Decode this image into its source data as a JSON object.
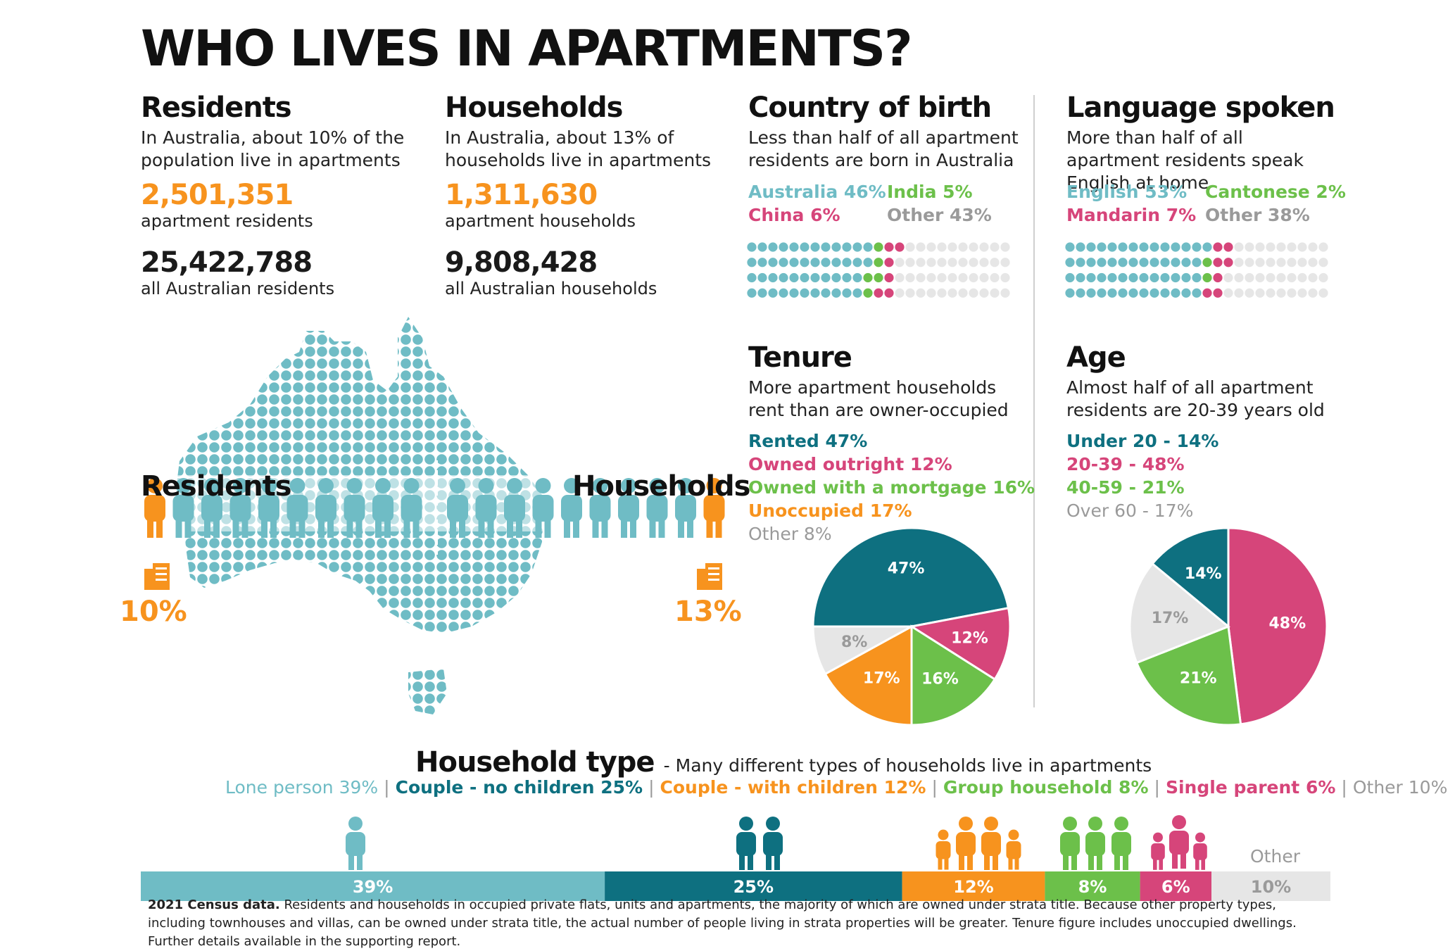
{
  "title": "WHO LIVES IN APARTMENTS?",
  "colors": {
    "teal_light": "#6fbcc5",
    "teal_dark": "#0e7080",
    "pink": "#d6457a",
    "green": "#6cc04a",
    "orange": "#f7931e",
    "grey": "#e6e6e6",
    "grey_text": "#9a9a9a"
  },
  "residents": {
    "heading": "Residents",
    "desc": "In Australia, about 10% of the population live in apartments",
    "count": "2,501,351",
    "count_label": "apartment residents",
    "total": "25,422,788",
    "total_label": "all Australian residents"
  },
  "households": {
    "heading": "Households",
    "desc": "In Australia, about 13% of households live in apartments",
    "count": "1,311,630",
    "count_label": "apartment households",
    "total": "9,808,428",
    "total_label": "all Australian households"
  },
  "map": {
    "left_label": "Residents",
    "right_label": "Households",
    "left_pct": "10%",
    "right_pct": "13%"
  },
  "country": {
    "heading": "Country of birth",
    "desc": "Less than half of all apartment residents are born in Australia",
    "items": [
      {
        "label": "Australia 46%",
        "color": "#6fbcc5"
      },
      {
        "label": "India 5%",
        "color": "#6cc04a"
      },
      {
        "label": "China 6%",
        "color": "#d6457a"
      },
      {
        "label": "Other 43%",
        "color": "#9a9a9a"
      }
    ]
  },
  "language": {
    "heading": "Language spoken",
    "desc": "More than half of all apartment residents speak English at home",
    "items": [
      {
        "label": "English 53%",
        "color": "#6fbcc5"
      },
      {
        "label": "Cantonese 2%",
        "color": "#6cc04a"
      },
      {
        "label": "Mandarin 7%",
        "color": "#d6457a"
      },
      {
        "label": "Other 38%",
        "color": "#9a9a9a"
      }
    ]
  },
  "tenure": {
    "heading": "Tenure",
    "desc": "More apartment households rent than are owner-occupied",
    "items": [
      {
        "label": "Rented 47%",
        "color": "#0e7080"
      },
      {
        "label": "Owned outright 12%",
        "color": "#d6457a"
      },
      {
        "label": "Owned with a mortgage 16%",
        "color": "#6cc04a"
      },
      {
        "label": "Unoccupied 17%",
        "color": "#f7931e"
      },
      {
        "label": "Other 8%",
        "color": "#9a9a9a"
      }
    ]
  },
  "age": {
    "heading": "Age",
    "desc": "Almost half of all apartment residents are 20-39 years old",
    "items": [
      {
        "label": "Under 20 - 14%",
        "color": "#0e7080"
      },
      {
        "label": "20-39 - 48%",
        "color": "#d6457a"
      },
      {
        "label": "40-59 - 21%",
        "color": "#6cc04a"
      },
      {
        "label": "Over 60 - 17%",
        "color": "#9a9a9a"
      }
    ]
  },
  "household_type": {
    "heading": "Household type",
    "subheading": "- Many different types of households live in apartments",
    "items": [
      {
        "label": "Lone person 39%",
        "color": "#6fbcc5"
      },
      {
        "label": "Couple - no children 25%",
        "color": "#0e7080"
      },
      {
        "label": "Couple - with children 12%",
        "color": "#f7931e"
      },
      {
        "label": "Group household 8%",
        "color": "#6cc04a"
      },
      {
        "label": "Single parent 6%",
        "color": "#d6457a"
      },
      {
        "label": "Other 10%",
        "color": "#9a9a9a"
      }
    ],
    "other_label": "Other"
  },
  "footnote": {
    "bold": "2021 Census data.",
    "text": " Residents and households in occupied private flats, units and apartments, the majority of which are owned under strata title. Because other property types, including townhouses and villas, can be owned under strata title, the actual number of people living in strata properties will be greater. Tenure figure includes unoccupied dwellings. Further details available in the supporting report."
  },
  "chart_data": [
    {
      "type": "waffle",
      "title": "Country of birth",
      "categories": [
        "Australia",
        "India",
        "China",
        "Other"
      ],
      "values": [
        46,
        5,
        6,
        43
      ]
    },
    {
      "type": "waffle",
      "title": "Language spoken",
      "categories": [
        "English",
        "Cantonese",
        "Mandarin",
        "Other"
      ],
      "values": [
        53,
        2,
        7,
        38
      ]
    },
    {
      "type": "pie",
      "title": "Tenure",
      "categories": [
        "Rented",
        "Owned outright",
        "Owned with a mortgage",
        "Unoccupied",
        "Other"
      ],
      "values": [
        47,
        12,
        16,
        17,
        8
      ],
      "labels": [
        "47%",
        "12%",
        "16%",
        "17%",
        "8%"
      ],
      "colors": [
        "#0e7080",
        "#d6457a",
        "#6cc04a",
        "#f7931e",
        "#e6e6e6"
      ]
    },
    {
      "type": "pie",
      "title": "Age",
      "categories": [
        "Under 20",
        "20-39",
        "40-59",
        "Over 60"
      ],
      "values": [
        14,
        48,
        21,
        17
      ],
      "labels": [
        "14%",
        "48%",
        "21%",
        "17%"
      ],
      "colors": [
        "#0e7080",
        "#d6457a",
        "#6cc04a",
        "#e6e6e6"
      ]
    },
    {
      "type": "bar",
      "title": "Household type",
      "categories": [
        "Lone person",
        "Couple - no children",
        "Couple - with children",
        "Group household",
        "Single parent",
        "Other"
      ],
      "values": [
        39,
        25,
        12,
        8,
        6,
        10
      ],
      "labels": [
        "39%",
        "25%",
        "12%",
        "8%",
        "6%",
        "10%"
      ],
      "colors": [
        "#6fbcc5",
        "#0e7080",
        "#f7931e",
        "#6cc04a",
        "#d6457a",
        "#e6e6e6"
      ]
    },
    {
      "type": "pictogram",
      "title": "Residents / Households",
      "series": [
        {
          "name": "Residents",
          "value": 10
        },
        {
          "name": "Households",
          "value": 13
        }
      ]
    }
  ]
}
